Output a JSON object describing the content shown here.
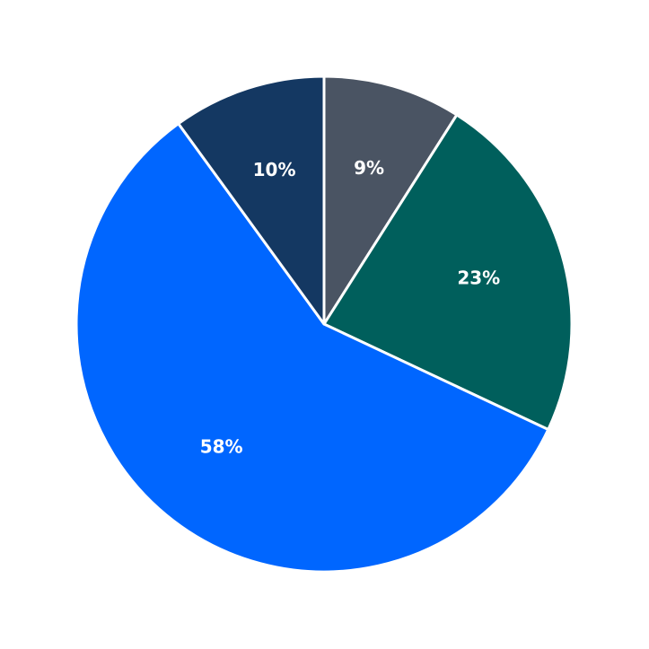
{
  "chart_data": {
    "type": "pie",
    "values": [
      9,
      23,
      58,
      10
    ],
    "value_labels": [
      "9%",
      "23%",
      "58%",
      "10%"
    ],
    "colors": [
      "#4a5463",
      "#005f5c",
      "#0066ff",
      "#143862"
    ]
  }
}
